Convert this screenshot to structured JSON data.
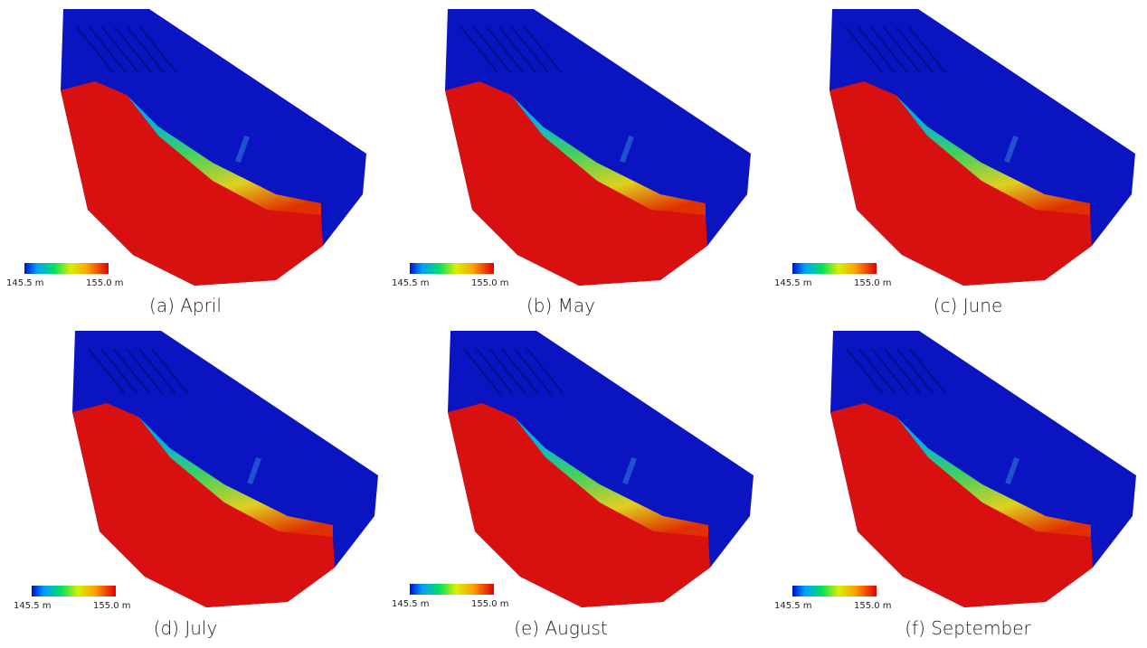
{
  "panels": [
    {
      "caption": "(a) April",
      "scale_min": "145.5 m",
      "scale_max": "155.0 m"
    },
    {
      "caption": "(b) May",
      "scale_min": "145.5 m",
      "scale_max": "155.0 m"
    },
    {
      "caption": "(c) June",
      "scale_min": "145.5 m",
      "scale_max": "155.0 m"
    },
    {
      "caption": "(d) July",
      "scale_min": "145.5 m",
      "scale_max": "155.0 m"
    },
    {
      "caption": "(e) August",
      "scale_min": "145.5 m",
      "scale_max": "155.0 m"
    },
    {
      "caption": "(f) September",
      "scale_min": "145.5 m",
      "scale_max": "155.0 m"
    }
  ]
}
